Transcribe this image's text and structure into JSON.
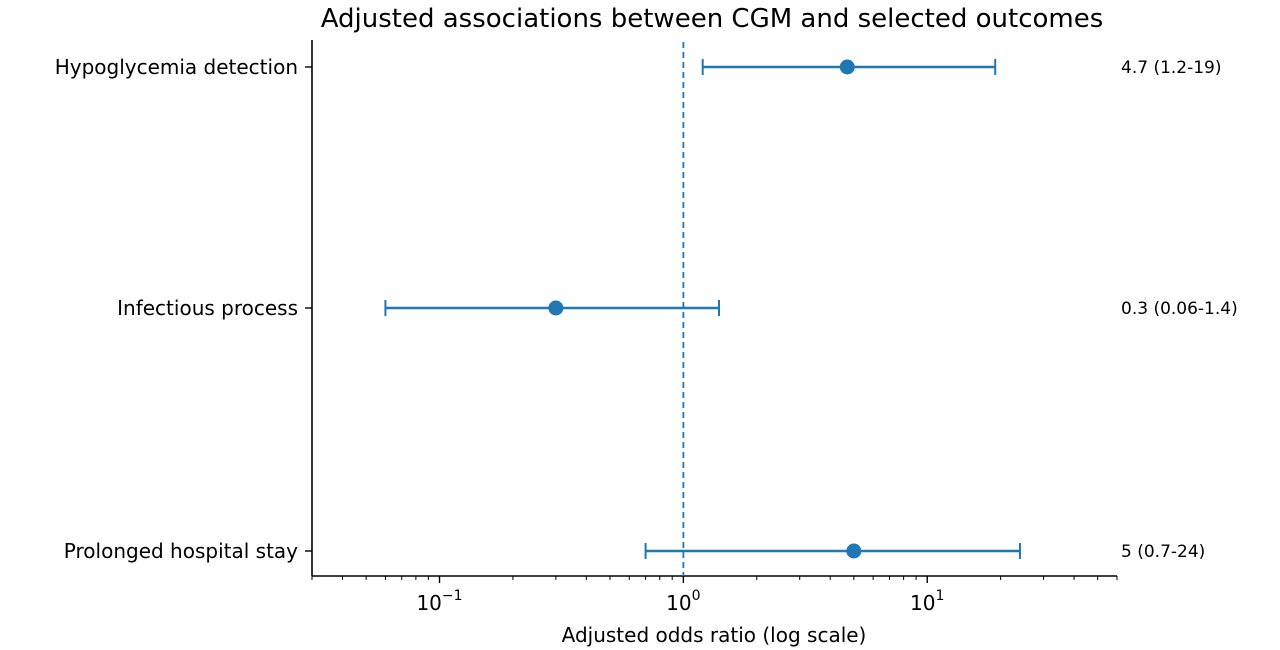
{
  "chart_data": {
    "type": "forest",
    "title": "Adjusted associations between CGM and selected outcomes",
    "xlabel": "Adjusted odds ratio (log scale)",
    "ylabel": "",
    "xscale": "log",
    "xlim": [
      0.03,
      60
    ],
    "reference_line": 1,
    "series_color": "#1f77b4",
    "rows": [
      {
        "label": "Hypoglycemia detection",
        "or": 4.7,
        "lo": 1.2,
        "hi": 19,
        "annotation": "4.7 (1.2-19)"
      },
      {
        "label": "Infectious process",
        "or": 0.3,
        "lo": 0.06,
        "hi": 1.4,
        "annotation": "0.3 (0.06-1.4)"
      },
      {
        "label": "Prolonged hospital stay",
        "or": 5,
        "lo": 0.7,
        "hi": 24,
        "annotation": "5 (0.7-24)"
      }
    ],
    "xticks": [
      {
        "value": 0.1,
        "base": "10",
        "exp": "−1"
      },
      {
        "value": 1,
        "base": "10",
        "exp": "0"
      },
      {
        "value": 10,
        "base": "10",
        "exp": "1"
      }
    ]
  }
}
